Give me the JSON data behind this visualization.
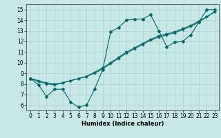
{
  "title": "",
  "xlabel": "Humidex (Indice chaleur)",
  "xlim": [
    -0.5,
    23.5
  ],
  "ylim": [
    5.5,
    15.5
  ],
  "xticks": [
    0,
    1,
    2,
    3,
    4,
    5,
    6,
    7,
    8,
    9,
    10,
    11,
    12,
    13,
    14,
    15,
    16,
    17,
    18,
    19,
    20,
    21,
    22,
    23
  ],
  "yticks": [
    6,
    7,
    8,
    9,
    10,
    11,
    12,
    13,
    14,
    15
  ],
  "bg_color": "#c8e8e8",
  "grid_color": "#b0d4d4",
  "line_color": "#006868",
  "line1_x": [
    0,
    1,
    2,
    3,
    4,
    5,
    6,
    7,
    8,
    9,
    10,
    11,
    12,
    13,
    14,
    15,
    16,
    17,
    18,
    19,
    20,
    21,
    22,
    23
  ],
  "line1_y": [
    8.5,
    7.9,
    6.8,
    7.5,
    7.5,
    6.3,
    5.8,
    6.0,
    7.5,
    9.3,
    12.9,
    13.3,
    14.0,
    14.1,
    14.1,
    14.5,
    13.0,
    11.5,
    11.9,
    12.0,
    12.6,
    13.8,
    15.0,
    15.0
  ],
  "line2_x": [
    0,
    1,
    2,
    3,
    4,
    5,
    6,
    7,
    8,
    9,
    10,
    11,
    12,
    13,
    14,
    15,
    16,
    17,
    18,
    19,
    20,
    21,
    22,
    23
  ],
  "line2_y": [
    8.5,
    8.2,
    8.0,
    7.9,
    8.1,
    8.3,
    8.5,
    8.7,
    9.0,
    9.4,
    9.9,
    10.4,
    10.9,
    11.3,
    11.7,
    12.1,
    12.4,
    12.6,
    12.8,
    13.1,
    13.4,
    13.8,
    14.3,
    14.8
  ],
  "line3_x": [
    0,
    1,
    2,
    3,
    4,
    5,
    6,
    7,
    8,
    9,
    10,
    11,
    12,
    13,
    14,
    15,
    16,
    17,
    18,
    19,
    20,
    21,
    22,
    23
  ],
  "line3_y": [
    8.5,
    8.3,
    8.1,
    8.0,
    8.1,
    8.3,
    8.5,
    8.7,
    9.1,
    9.5,
    10.0,
    10.5,
    11.0,
    11.4,
    11.8,
    12.2,
    12.5,
    12.7,
    12.9,
    13.2,
    13.5,
    13.9,
    14.3,
    14.8
  ],
  "font_size": 6,
  "tick_font_size": 5.5
}
